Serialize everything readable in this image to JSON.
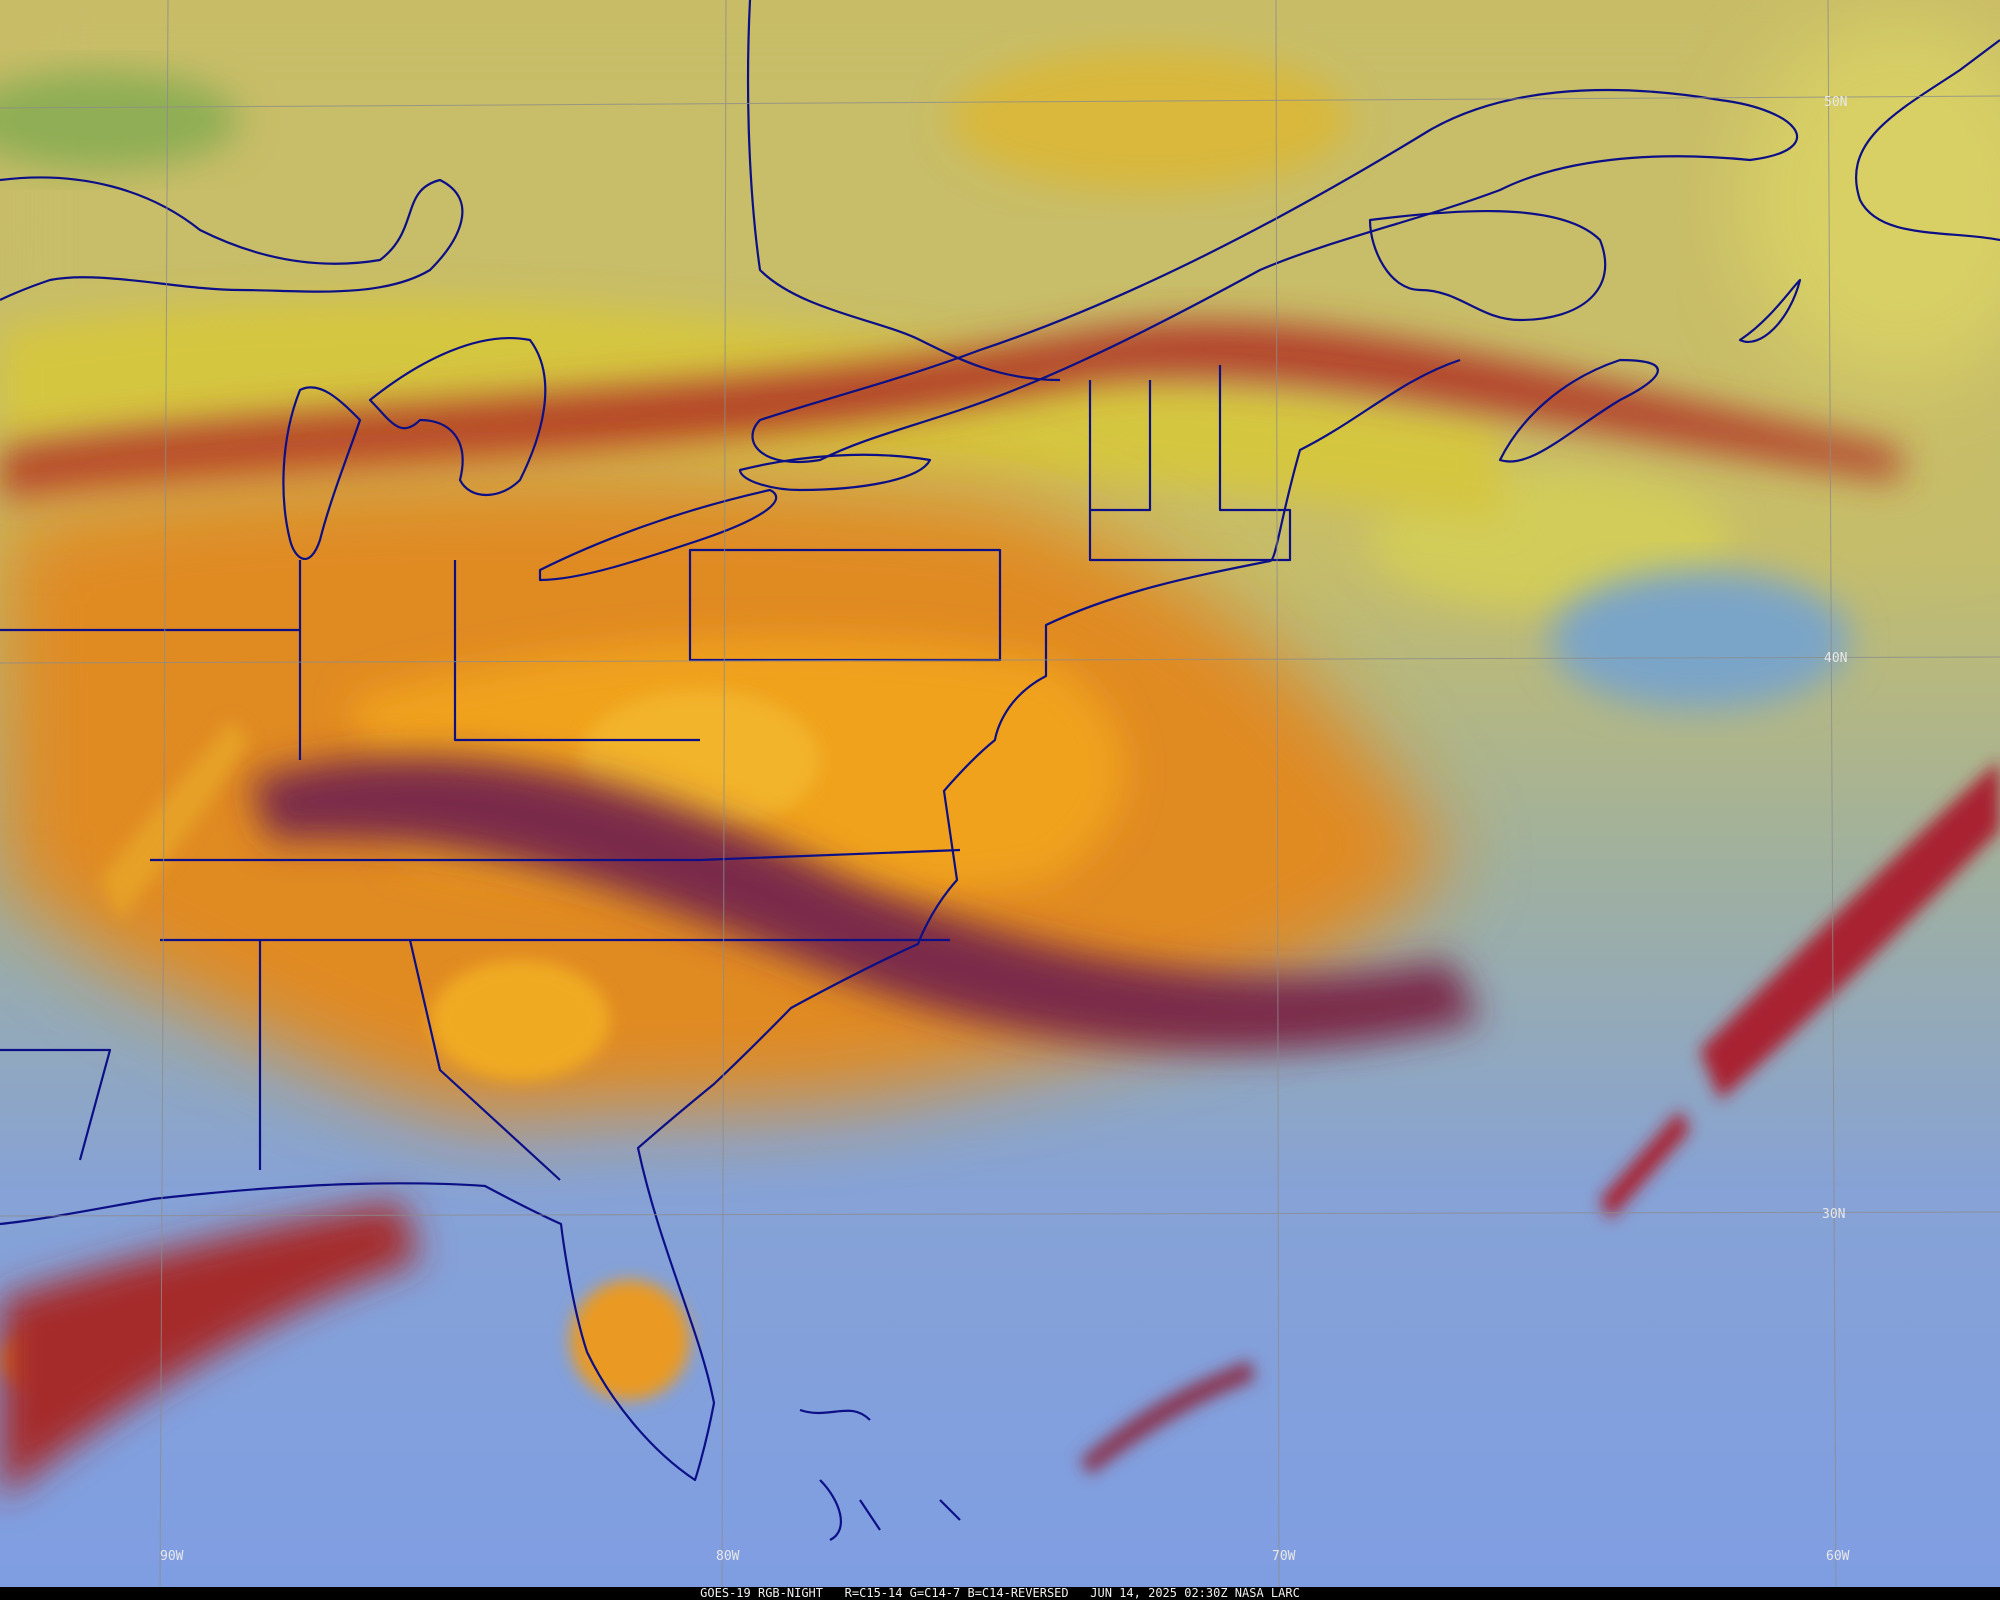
{
  "latitude_labels": [
    "50N",
    "40N",
    "30N"
  ],
  "longitude_labels": [
    "90W",
    "80W",
    "70W",
    "60W"
  ],
  "footer": "GOES-19 RGB-NIGHT   R=C15-14 G=C14-7 B=C14-REVERSED   JUN 14, 2025 02:30Z NASA LARC"
}
